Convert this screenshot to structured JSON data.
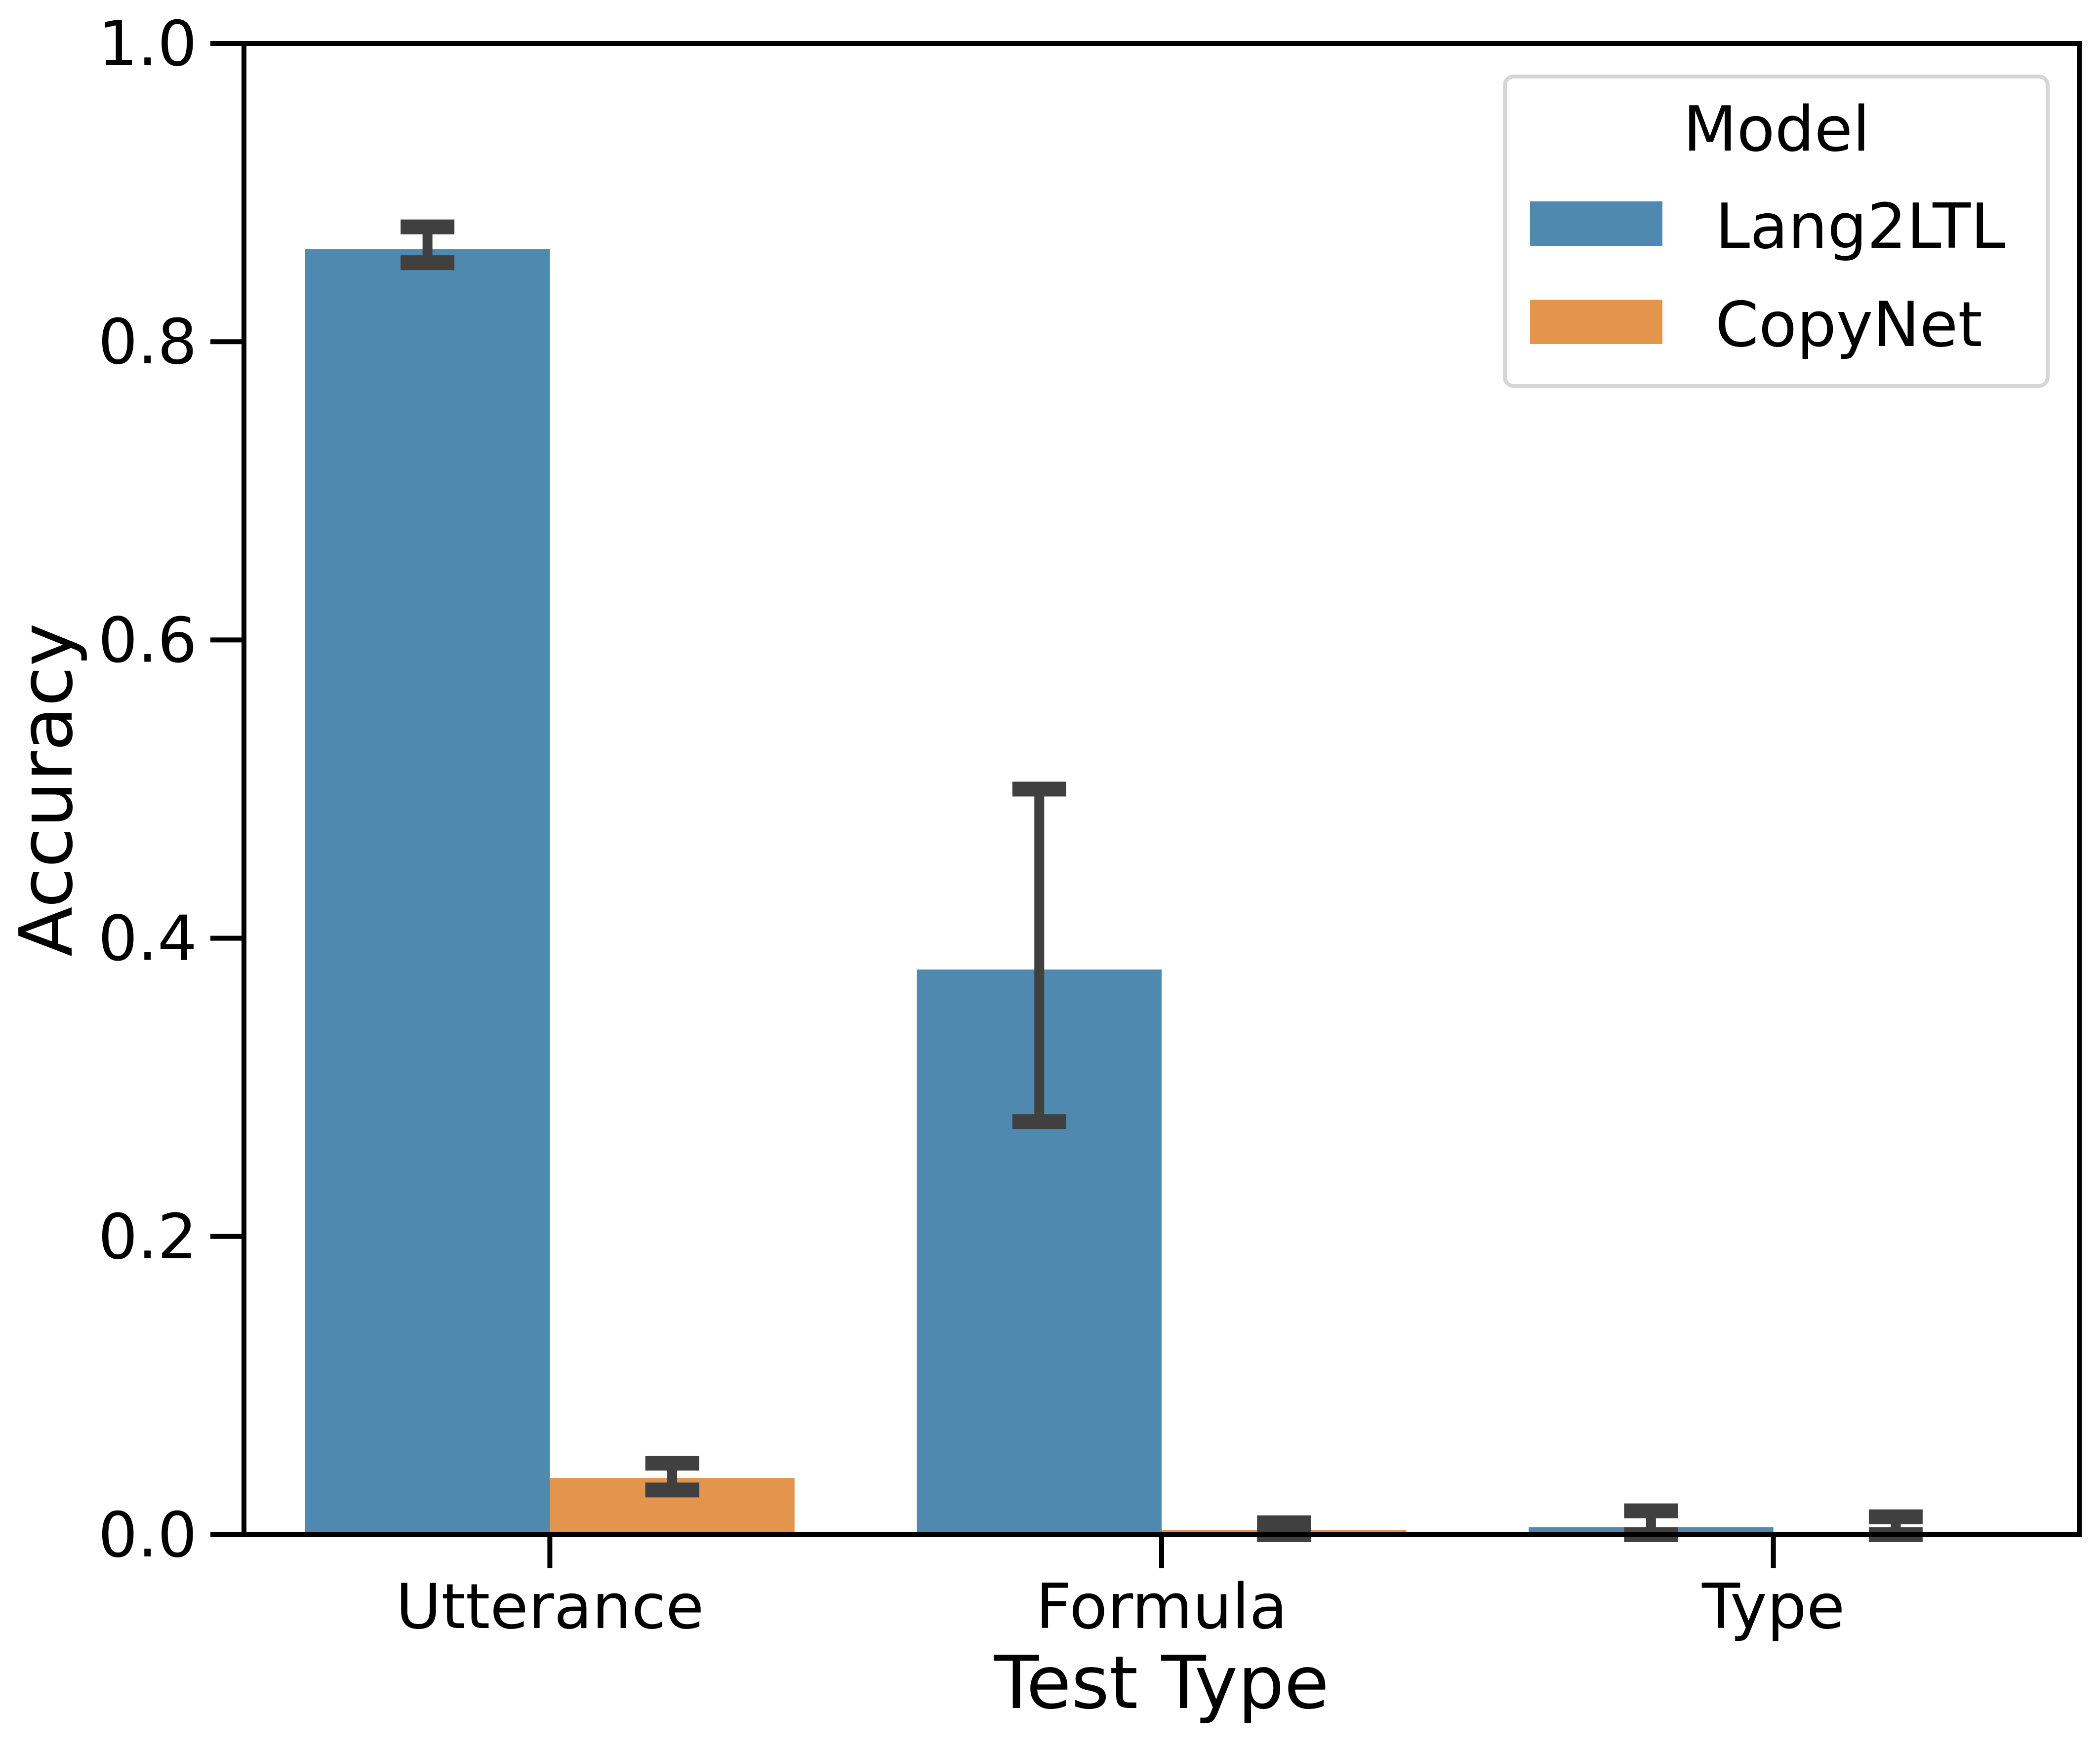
{
  "chart_data": {
    "type": "bar",
    "xlabel": "Test Type",
    "ylabel": "Accuracy",
    "ylim": [
      0,
      1.0
    ],
    "yticks": [
      "0.0",
      "0.2",
      "0.4",
      "0.6",
      "0.8",
      "1.0"
    ],
    "categories": [
      "Utterance",
      "Formula",
      "Type"
    ],
    "grid": false,
    "legend": {
      "title": "Model",
      "position": "top-right"
    },
    "series": [
      {
        "name": "Lang2LTL",
        "color": "#5089b0",
        "values": [
          0.862,
          0.379,
          0.005
        ],
        "error_low": [
          0.853,
          0.277,
          0.0
        ],
        "error_high": [
          0.877,
          0.5,
          0.016
        ]
      },
      {
        "name": "CopyNet",
        "color": "#e3944d",
        "values": [
          0.038,
          0.003,
          0.002
        ],
        "error_low": [
          0.03,
          0.0,
          0.0
        ],
        "error_high": [
          0.048,
          0.008,
          0.012
        ]
      }
    ],
    "errorbar_color": "#404040"
  }
}
